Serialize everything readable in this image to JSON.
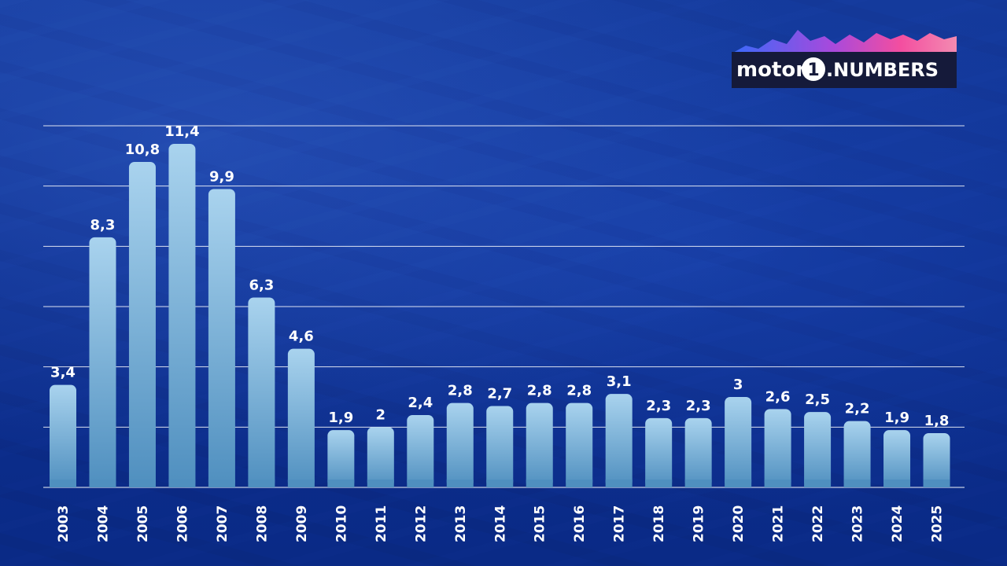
{
  "logo": {
    "brand_left": "motor",
    "brand_mid": "1",
    "brand_right": ".NUMBERS"
  },
  "chart_data": {
    "type": "bar",
    "categories": [
      "2003",
      "2004",
      "2005",
      "2006",
      "2007",
      "2008",
      "2009",
      "2010",
      "2011",
      "2012",
      "2013",
      "2014",
      "2015",
      "2016",
      "2017",
      "2018",
      "2019",
      "2020",
      "2021",
      "2022",
      "2023",
      "2024",
      "2025"
    ],
    "values": [
      3.4,
      8.3,
      10.8,
      11.4,
      9.9,
      6.3,
      4.6,
      1.9,
      2.0,
      2.4,
      2.8,
      2.7,
      2.8,
      2.8,
      3.1,
      2.3,
      2.3,
      3.0,
      2.6,
      2.5,
      2.2,
      1.9,
      1.8
    ],
    "value_labels": [
      "3,4",
      "8,3",
      "10,8",
      "11,4",
      "9,9",
      "6,3",
      "4,6",
      "1,9",
      "2",
      "2,4",
      "2,8",
      "2,7",
      "2,8",
      "2,8",
      "3,1",
      "2,3",
      "2,3",
      "3",
      "2,6",
      "2,5",
      "2,2",
      "1,9",
      "1,8"
    ],
    "title": "",
    "xlabel": "",
    "ylabel": "",
    "ylim": [
      0,
      12
    ],
    "grid": true,
    "legend": "none",
    "bar_color_top": "#a9d3ee",
    "bar_color_bottom": "#4f8fbf"
  }
}
